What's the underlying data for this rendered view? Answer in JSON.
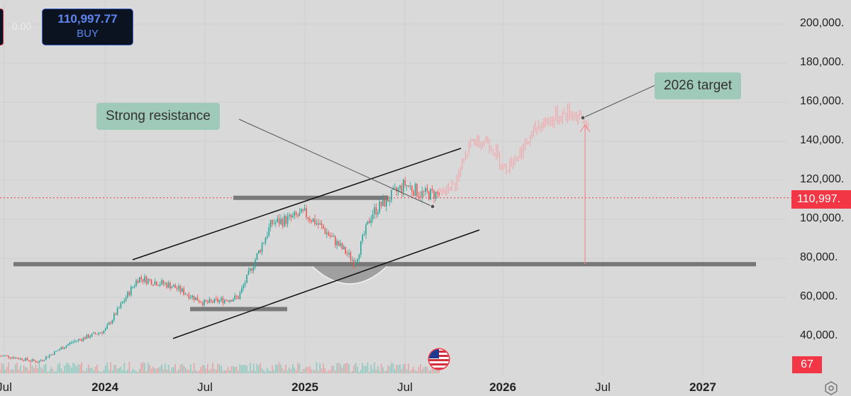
{
  "trade_panel": {
    "spread": "0.00",
    "buy_price": "110,997.77",
    "buy_label": "BUY"
  },
  "price_axis": {
    "labels": [
      "200,000.",
      "180,000.",
      "160,000.",
      "140,000.",
      "120,000.",
      "100,000.",
      "80,000.",
      "60,000.",
      "40,000."
    ]
  },
  "current_price": "110,997.",
  "indicator_value": "67",
  "time_axis": {
    "labels": [
      {
        "text": "Jul",
        "bold": false
      },
      {
        "text": "2024",
        "bold": true
      },
      {
        "text": "Jul",
        "bold": false
      },
      {
        "text": "2025",
        "bold": true
      },
      {
        "text": "Jul",
        "bold": false
      },
      {
        "text": "2026",
        "bold": true
      },
      {
        "text": "Jul",
        "bold": false
      },
      {
        "text": "2027",
        "bold": true
      }
    ]
  },
  "annotations": {
    "resistance_note": "Strong resistance",
    "target_note": "2026 target"
  },
  "icons": {
    "flag": "us-flag-icon",
    "settings": "settings-icon"
  },
  "colors": {
    "up": "#26a69a",
    "down": "#ef5350",
    "projection": "#f4a0a5",
    "current_price": "#f23645",
    "note_bg": "#9fc9b8"
  },
  "chart_data": {
    "type": "line",
    "title": "",
    "xlabel": "",
    "ylabel": "",
    "ylim": [
      30000,
      210000
    ],
    "x_range": [
      "2023-06",
      "2027-03"
    ],
    "historical_series": {
      "x": [
        "2023-07",
        "2023-09",
        "2023-11",
        "2024-01",
        "2024-03",
        "2024-05",
        "2024-07",
        "2024-09",
        "2024-11",
        "2024-12",
        "2025-01",
        "2025-02",
        "2025-04",
        "2025-05",
        "2025-07",
        "2025-08"
      ],
      "values": [
        30000,
        27000,
        37000,
        43000,
        70000,
        66000,
        57000,
        60000,
        98000,
        100000,
        103000,
        96000,
        78000,
        103000,
        118000,
        113000
      ]
    },
    "projection_series": {
      "x": [
        "2025-09",
        "2025-10",
        "2025-11",
        "2025-12",
        "2026-01",
        "2026-02",
        "2026-03",
        "2026-04",
        "2026-05",
        "2026-06"
      ],
      "values": [
        112000,
        118000,
        140000,
        140000,
        126000,
        135000,
        148000,
        152000,
        155000,
        148000
      ]
    },
    "levels": {
      "support": 77000,
      "resistance": 111000,
      "lower_range": 54000,
      "target": 152000,
      "current": 110997.77
    }
  }
}
